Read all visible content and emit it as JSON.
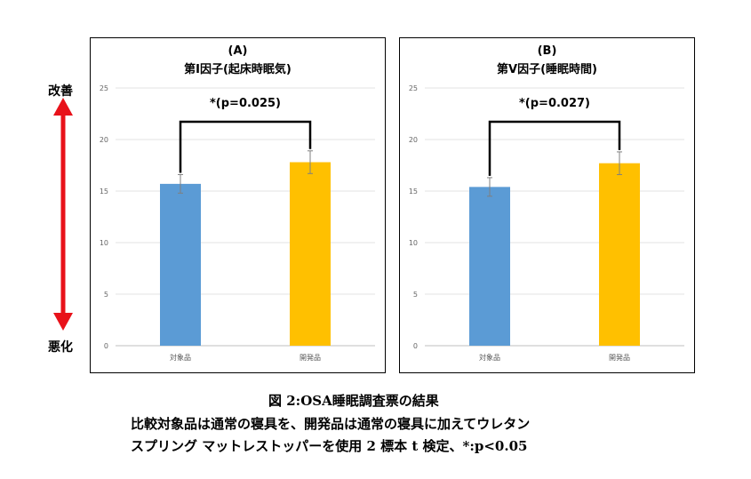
{
  "side_labels": {
    "top": "改善",
    "bottom": "悪化"
  },
  "caption": {
    "title": "図 2:OSA睡眠調査票の結果",
    "line1": "比較対象品は通常の寝具を、開発品は通常の寝具に加えてウレタン",
    "line2": "スプリング  マットレストッパーを使用    2 標本 t 検定、*:p<0.05"
  },
  "colors": {
    "control": "#5b9bd5",
    "developed": "#ffc000"
  },
  "chart_data": [
    {
      "type": "bar",
      "panel_label": "(A)",
      "title": "第Ⅰ因子(起床時眠気)",
      "categories": [
        "対象品",
        "開発品"
      ],
      "values": [
        15.7,
        17.8
      ],
      "errors": [
        0.9,
        1.1
      ],
      "ylim": [
        0,
        25
      ],
      "yticks": [
        "0",
        "5",
        "10",
        "15",
        "20",
        "25"
      ],
      "significance": "*(p=0.025)",
      "grid": true
    },
    {
      "type": "bar",
      "panel_label": "(B)",
      "title": "第Ⅴ因子(睡眠時間)",
      "categories": [
        "対象品",
        "開発品"
      ],
      "values": [
        15.4,
        17.7
      ],
      "errors": [
        0.9,
        1.1
      ],
      "ylim": [
        0,
        25
      ],
      "yticks": [
        "0",
        "5",
        "10",
        "15",
        "20",
        "25"
      ],
      "significance": "*(p=0.027)",
      "grid": true
    }
  ]
}
